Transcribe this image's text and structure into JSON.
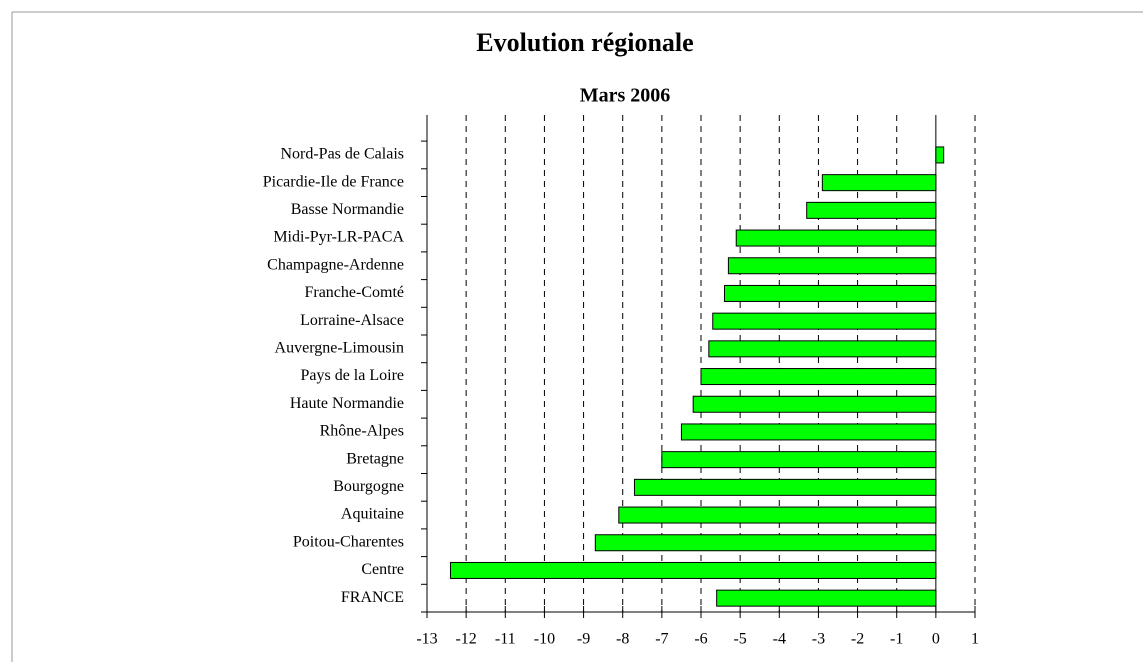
{
  "chart_data": {
    "type": "barh",
    "title": "Evolution régionale",
    "subtitle": "Mars 2006",
    "categories": [
      "Nord-Pas de Calais",
      "Picardie-Ile de France",
      "Basse Normandie",
      "Midi-Pyr-LR-PACA",
      "Champagne-Ardenne",
      "Franche-Comté",
      "Lorraine-Alsace",
      "Auvergne-Limousin",
      "Pays de la Loire",
      "Haute Normandie",
      "Rhône-Alpes",
      "Bretagne",
      "Bourgogne",
      "Aquitaine",
      "Poitou-Charentes",
      "Centre",
      "FRANCE"
    ],
    "values": [
      0.2,
      -2.9,
      -3.3,
      -5.1,
      -5.3,
      -5.4,
      -5.7,
      -5.8,
      -6.0,
      -6.2,
      -6.5,
      -7.0,
      -7.7,
      -8.1,
      -8.7,
      -12.4,
      -5.6
    ],
    "color": "#00ff00",
    "xlim": [
      -13,
      1
    ],
    "xticks": [
      -13,
      -12,
      -11,
      -10,
      -9,
      -8,
      -7,
      -6,
      -5,
      -4,
      -3,
      -2,
      -1,
      0,
      1
    ],
    "grid": true
  }
}
